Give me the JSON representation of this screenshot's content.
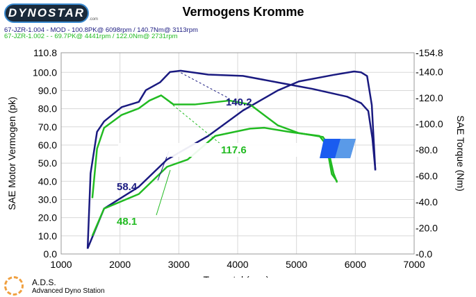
{
  "logo": {
    "text": "DYNOSTAR",
    "suffix": ".com"
  },
  "legend": [
    {
      "text": "67-JZR-1.004 - MOD  - 100.8PK@ 6098rpm / 140.7Nm@ 3113rpm",
      "color": "#1a1a80"
    },
    {
      "text": "67-JZR-1.002 -  - 69.7PK@ 4441rpm / 122.0Nm@ 2731rpm",
      "color": "#22bb22"
    }
  ],
  "footer": {
    "title": "A.D.S.",
    "subtitle": "Advanced Dyno Station"
  },
  "chart_data": {
    "type": "line",
    "title": "Vermogens Kromme",
    "xlabel": "Toerental (rpm)",
    "ylabel": "SAE Motor Vermogen (pk)",
    "y2label": "SAE Torque (Nm)",
    "xlim": [
      1000,
      7000
    ],
    "ylim": [
      0,
      110.8
    ],
    "y2lim": [
      0,
      154.8
    ],
    "xticks": [
      "1000",
      "2000",
      "3000",
      "4000",
      "5000",
      "6000",
      "7000"
    ],
    "yticks": [
      "0.0",
      "10.0",
      "20.0",
      "30.0",
      "40.0",
      "50.0",
      "60.0",
      "70.0",
      "80.0",
      "90.0",
      "100.0",
      "110.8"
    ],
    "y2ticks": [
      "-0.0",
      "-20.0",
      "-40.0",
      "-60.0",
      "-80.0",
      "-100.0",
      "-120.0",
      "-140.0",
      "-154.8"
    ],
    "grid": true,
    "series": [
      {
        "name": "67-JZR-1.004 Vermogen",
        "axis": "left",
        "color": "#1a1a80",
        "points": [
          [
            1450,
            3
          ],
          [
            1730,
            25
          ],
          [
            2320,
            37
          ],
          [
            2800,
            52
          ],
          [
            3500,
            65
          ],
          [
            4090,
            79
          ],
          [
            4680,
            90
          ],
          [
            5040,
            95
          ],
          [
            5630,
            98.6
          ],
          [
            5980,
            100.5
          ],
          [
            6100,
            100
          ],
          [
            6200,
            98
          ],
          [
            6280,
            82
          ],
          [
            6340,
            46
          ]
        ]
      },
      {
        "name": "67-JZR-1.004 Torque",
        "axis": "right",
        "color": "#1a1a80",
        "points": [
          [
            1450,
            4
          ],
          [
            1500,
            62
          ],
          [
            1610,
            94
          ],
          [
            1730,
            102
          ],
          [
            2030,
            113
          ],
          [
            2320,
            117
          ],
          [
            2440,
            126
          ],
          [
            2680,
            132
          ],
          [
            2850,
            140
          ],
          [
            3030,
            141
          ],
          [
            3500,
            138
          ],
          [
            4090,
            137
          ],
          [
            4680,
            132
          ],
          [
            5270,
            127
          ],
          [
            5860,
            121
          ],
          [
            6100,
            116
          ],
          [
            6220,
            110
          ],
          [
            6290,
            89
          ],
          [
            6340,
            65
          ]
        ]
      },
      {
        "name": "67-JZR-1.002 Vermogen",
        "axis": "left",
        "color": "#22bb22",
        "points": [
          [
            1530,
            10
          ],
          [
            1730,
            25
          ],
          [
            2320,
            33
          ],
          [
            2800,
            48
          ],
          [
            3150,
            52
          ],
          [
            3620,
            65
          ],
          [
            4210,
            69
          ],
          [
            4450,
            69.5
          ],
          [
            4920,
            67
          ],
          [
            5390,
            65
          ],
          [
            5510,
            60
          ],
          [
            5600,
            44
          ],
          [
            5690,
            40
          ]
        ]
      },
      {
        "name": "67-JZR-1.002 Torque",
        "axis": "right",
        "color": "#22bb22",
        "points": [
          [
            1530,
            43
          ],
          [
            1610,
            81
          ],
          [
            1730,
            97
          ],
          [
            2030,
            107
          ],
          [
            2320,
            112
          ],
          [
            2500,
            118
          ],
          [
            2700,
            122
          ],
          [
            2910,
            115
          ],
          [
            3270,
            115
          ],
          [
            3860,
            118
          ],
          [
            4210,
            115
          ],
          [
            4680,
            99
          ],
          [
            5040,
            93
          ],
          [
            5450,
            90
          ],
          [
            5510,
            86
          ],
          [
            5630,
            62
          ],
          [
            5690,
            55
          ]
        ]
      }
    ],
    "annotations": [
      {
        "text": "58.4",
        "color": "#1a1a80"
      },
      {
        "text": "48.1",
        "color": "#22bb22"
      },
      {
        "text": "140.2",
        "color": "#1a1a80"
      },
      {
        "text": "117.6",
        "color": "#22bb22"
      }
    ]
  }
}
